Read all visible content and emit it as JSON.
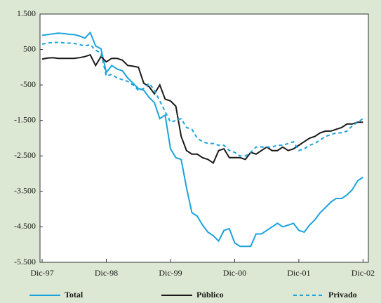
{
  "chart_data": {
    "type": "line",
    "x": [
      0,
      1,
      2,
      3,
      4,
      5,
      6,
      7,
      8,
      9,
      10,
      11,
      12,
      13,
      14,
      15,
      16,
      17,
      18,
      19,
      20,
      21,
      22,
      23,
      24,
      25,
      26,
      27,
      28,
      29,
      30,
      31,
      32,
      33,
      34,
      35,
      36,
      37,
      38,
      39,
      40,
      41,
      42,
      43,
      44,
      45,
      46,
      47,
      48,
      49,
      50,
      51,
      52,
      53,
      54,
      55,
      56,
      57,
      58,
      59,
      60
    ],
    "xlim": [
      -0.4,
      61
    ],
    "xticks": [
      {
        "value": 0,
        "label": "Dic-97"
      },
      {
        "value": 12,
        "label": "Dic-98"
      },
      {
        "value": 24,
        "label": "Dic-99"
      },
      {
        "value": 36,
        "label": "Dic-00"
      },
      {
        "value": 48,
        "label": "Dic-01"
      },
      {
        "value": 60,
        "label": "Dic-02"
      }
    ],
    "ylim": [
      -5500,
      1500
    ],
    "yticks": [
      {
        "value": 1500,
        "label": "1.500"
      },
      500,
      -500,
      {
        "value": -1500,
        "label": "-1.500"
      },
      {
        "value": -2500,
        "label": "-2.500"
      },
      {
        "value": -3500,
        "label": "-3.500"
      },
      {
        "value": -4500,
        "label": "-4.500"
      },
      {
        "value": -5500,
        "label": "-5.500"
      }
    ],
    "series": [
      {
        "name": "Total",
        "color": "#1ba3dd",
        "dashed": false,
        "values": [
          900,
          920,
          940,
          960,
          950,
          930,
          920,
          880,
          820,
          980,
          600,
          520,
          -150,
          50,
          -50,
          -100,
          -300,
          -450,
          -600,
          -650,
          -850,
          -1000,
          -1450,
          -1350,
          -2300,
          -2550,
          -2600,
          -3400,
          -4100,
          -4200,
          -4450,
          -4650,
          -4750,
          -4900,
          -4600,
          -4550,
          -4950,
          -5050,
          -5050,
          -5050,
          -4700,
          -4700,
          -4600,
          -4500,
          -4400,
          -4500,
          -4450,
          -4400,
          -4600,
          -4650,
          -4450,
          -4300,
          -4100,
          -3950,
          -3800,
          -3700,
          -3700,
          -3600,
          -3450,
          -3200,
          -3100
        ]
      },
      {
        "name": "Público",
        "color": "#1a1a1a",
        "dashed": false,
        "values": [
          230,
          260,
          270,
          250,
          250,
          250,
          250,
          270,
          300,
          350,
          50,
          300,
          150,
          250,
          250,
          200,
          50,
          30,
          0,
          -450,
          -550,
          -750,
          -500,
          -900,
          -950,
          -1100,
          -1950,
          -2350,
          -2450,
          -2450,
          -2550,
          -2600,
          -2700,
          -2350,
          -2300,
          -2550,
          -2550,
          -2550,
          -2600,
          -2400,
          -2450,
          -2350,
          -2250,
          -2350,
          -2350,
          -2250,
          -2350,
          -2300,
          -2200,
          -2100,
          -2000,
          -1950,
          -1850,
          -1800,
          -1800,
          -1750,
          -1700,
          -1600,
          -1600,
          -1550,
          -1550
        ]
      },
      {
        "name": "Privado",
        "color": "#1ba3dd",
        "dashed": true,
        "values": [
          650,
          680,
          700,
          700,
          690,
          680,
          670,
          640,
          600,
          640,
          480,
          400,
          -250,
          -200,
          -300,
          -350,
          -400,
          -500,
          -650,
          -600,
          -450,
          -650,
          -950,
          -1250,
          -1550,
          -1500,
          -1450,
          -1700,
          -1750,
          -2000,
          -2100,
          -2150,
          -2150,
          -2200,
          -2200,
          -2350,
          -2400,
          -2500,
          -2500,
          -2400,
          -2250,
          -2250,
          -2250,
          -2250,
          -2200,
          -2200,
          -2150,
          -2100,
          -2350,
          -2300,
          -2200,
          -2150,
          -2050,
          -1950,
          -1900,
          -1850,
          -1850,
          -1800,
          -1650,
          -1550,
          -1450
        ]
      }
    ]
  }
}
